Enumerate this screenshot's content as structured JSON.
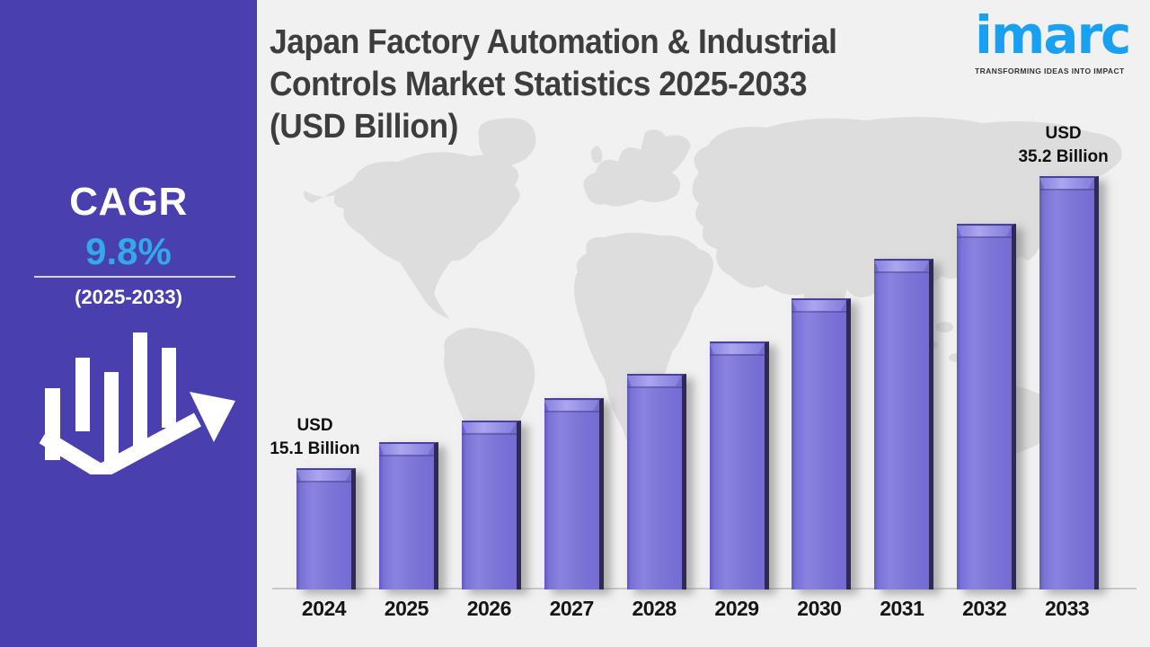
{
  "sidebar": {
    "cagr_label": "CAGR",
    "cagr_value": "9.8%",
    "period": "(2025-2033)"
  },
  "header": {
    "title_lines": [
      "Japan Factory Automation & Industrial",
      "Controls Market Statistics 2025-2033",
      "(USD Billion)"
    ]
  },
  "logo": {
    "brand": "imarc",
    "tagline": "TRANSFORMING IDEAS INTO IMPACT"
  },
  "chart_data": {
    "type": "bar",
    "title": "Japan Factory Automation & Industrial Controls Market Statistics 2025-2033 (USD Billion)",
    "unit": "USD Billion",
    "categories": [
      "2024",
      "2025",
      "2026",
      "2027",
      "2028",
      "2029",
      "2030",
      "2031",
      "2032",
      "2033"
    ],
    "values": [
      15.1,
      16.9,
      18.4,
      19.9,
      21.6,
      23.8,
      26.8,
      29.5,
      31.9,
      35.2
    ],
    "labeled_points": {
      "2024": "USD 15.1 Billion",
      "2033": "USD 35.2 Billion"
    },
    "first_label": {
      "line1": "USD",
      "line2": "15.1 Billion"
    },
    "last_label": {
      "line1": "USD",
      "line2": "35.2 Billion"
    },
    "ylim": [
      0,
      40
    ],
    "grid": false,
    "legend": false,
    "xlabel": "",
    "ylabel": ""
  },
  "colors": {
    "sidebar_bg": "#4A3FAE",
    "accent_blue": "#33A9E8",
    "logo_blue": "#19A0F0",
    "background": "#F1F1F1",
    "map_gray": "#DDDDDD",
    "title_text": "#3D3D3D",
    "bar_fill": "#7D76D8",
    "bar_edge_dark": "#2E2A52",
    "axis_line": "#C9C9C9"
  }
}
